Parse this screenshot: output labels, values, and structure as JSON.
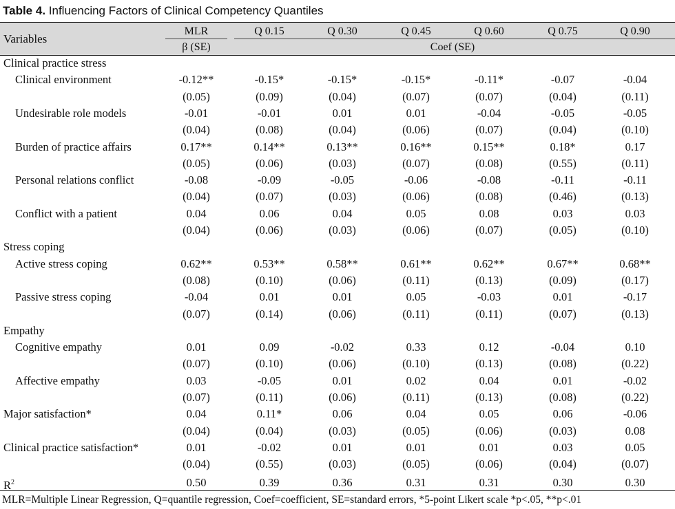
{
  "table": {
    "title_number": "Table 4.",
    "title_text": "Influencing Factors of Clinical Competency Quantiles",
    "variables_header": "Variables",
    "columns": [
      "MLR",
      "Q 0.15",
      "Q 0.30",
      "Q 0.45",
      "Q 0.60",
      "Q 0.75",
      "Q 0.90"
    ],
    "subheader_mlr": "β (SE)",
    "subheader_quantile": "Coef (SE)",
    "rows": [
      {
        "kind": "group",
        "label": "Clinical practice stress"
      },
      {
        "kind": "item",
        "label": "Clinical environment",
        "values": [
          "-0.12**",
          "-0.15*",
          "-0.15*",
          "-0.15*",
          "-0.11*",
          "-0.07",
          "-0.04"
        ],
        "se": [
          "(0.05)",
          "(0.09)",
          "(0.04)",
          "(0.07)",
          "(0.07)",
          "(0.04)",
          "(0.11)"
        ]
      },
      {
        "kind": "item",
        "label": "Undesirable role models",
        "values": [
          "-0.01",
          "-0.01",
          "0.01",
          "0.01",
          "-0.04",
          "-0.05",
          "-0.05"
        ],
        "se": [
          "(0.04)",
          "(0.08)",
          "(0.04)",
          "(0.06)",
          "(0.07)",
          "(0.04)",
          "(0.10)"
        ]
      },
      {
        "kind": "item",
        "label": "Burden of practice affairs",
        "values": [
          "0.17**",
          "0.14**",
          "0.13**",
          "0.16**",
          "0.15**",
          "0.18*",
          "0.17"
        ],
        "se": [
          "(0.05)",
          "(0.06)",
          "(0.03)",
          "(0.07)",
          "(0.08)",
          "(0.55)",
          "(0.11)"
        ]
      },
      {
        "kind": "item",
        "label": "Personal relations conflict",
        "values": [
          "-0.08",
          "-0.09",
          "-0.05",
          "-0.06",
          "-0.08",
          "-0.11",
          "-0.11"
        ],
        "se": [
          "(0.04)",
          "(0.07)",
          "(0.03)",
          "(0.06)",
          "(0.08)",
          "(0.46)",
          "(0.13)"
        ]
      },
      {
        "kind": "item",
        "label": "Conflict with a patient",
        "values": [
          "0.04",
          "0.06",
          "0.04",
          "0.05",
          "0.08",
          "0.03",
          "0.03"
        ],
        "se": [
          "(0.04)",
          "(0.06)",
          "(0.03)",
          "(0.06)",
          "(0.07)",
          "(0.05)",
          "(0.10)"
        ]
      },
      {
        "kind": "group",
        "label": "Stress coping"
      },
      {
        "kind": "item",
        "label": "Active stress coping",
        "values": [
          "0.62**",
          "0.53**",
          "0.58**",
          "0.61**",
          "0.62**",
          "0.67**",
          "0.68**"
        ],
        "se": [
          "(0.08)",
          "(0.10)",
          "(0.06)",
          "(0.11)",
          "(0.13)",
          "(0.09)",
          "(0.17)"
        ]
      },
      {
        "kind": "item",
        "label": "Passive stress coping",
        "values": [
          "-0.04",
          "0.01",
          "0.01",
          "0.05",
          "-0.03",
          "0.01",
          "-0.17"
        ],
        "se": [
          "(0.07)",
          "(0.14)",
          "(0.06)",
          "(0.11)",
          "(0.11)",
          "(0.07)",
          "(0.13)"
        ]
      },
      {
        "kind": "group",
        "label": "Empathy"
      },
      {
        "kind": "item",
        "label": "Cognitive empathy",
        "values": [
          "0.01",
          "0.09",
          "-0.02",
          "0.33",
          "0.12",
          "-0.04",
          "0.10"
        ],
        "se": [
          "(0.07)",
          "(0.10)",
          "(0.06)",
          "(0.10)",
          "(0.13)",
          "(0.08)",
          "(0.22)"
        ]
      },
      {
        "kind": "item",
        "label": "Affective empathy",
        "values": [
          "0.03",
          "-0.05",
          "0.01",
          "0.02",
          "0.04",
          "0.01",
          "-0.02"
        ],
        "se": [
          "(0.07)",
          "(0.11)",
          "(0.06)",
          "(0.11)",
          "(0.13)",
          "(0.08)",
          "(0.22)"
        ]
      },
      {
        "kind": "top",
        "label": "Major satisfaction*",
        "values": [
          "0.04",
          "0.11*",
          "0.06",
          "0.04",
          "0.05",
          "0.06",
          "-0.06"
        ],
        "se": [
          "(0.04)",
          "(0.04)",
          "(0.03)",
          "(0.05)",
          "(0.06)",
          "(0.03)",
          "0.08"
        ]
      },
      {
        "kind": "top",
        "label": "Clinical practice satisfaction*",
        "values": [
          "0.01",
          "-0.02",
          "0.01",
          "0.01",
          "0.01",
          "0.03",
          "0.05"
        ],
        "se": [
          "(0.04)",
          "(0.55)",
          "(0.03)",
          "(0.05)",
          "(0.06)",
          "(0.04)",
          "(0.07)"
        ]
      }
    ],
    "r2": {
      "label_main": "R",
      "label_sup": "2",
      "values": [
        "0.50",
        "0.39",
        "0.36",
        "0.31",
        "0.31",
        "0.30",
        "0.30"
      ]
    },
    "footnote": "MLR=Multiple Linear Regression, Q=quantile regression, Coef=coefficient, SE=standard errors, *5-point Likert scale *p<.05, **p<.01"
  }
}
